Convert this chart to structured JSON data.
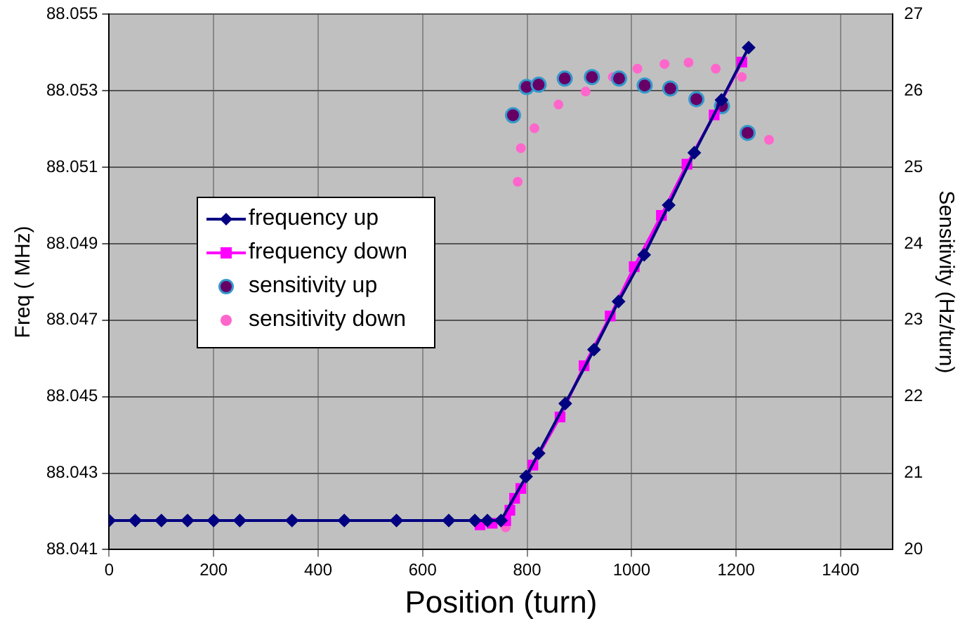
{
  "chart_data": {
    "type": "line",
    "xlabel": "Position (turn)",
    "ylabel": "Freq ( MHz)",
    "y2label": "Sensitivity (Hz/turn)",
    "xlim": [
      0,
      1500
    ],
    "xticks": [
      0,
      200,
      400,
      600,
      800,
      1000,
      1200,
      1400
    ],
    "ylim": [
      88.041,
      88.055
    ],
    "yticks": [
      88.041,
      88.043,
      88.045,
      88.047,
      88.049,
      88.051,
      88.053,
      88.055
    ],
    "y2lim": [
      20,
      27
    ],
    "y2ticks": [
      20,
      21,
      22,
      23,
      24,
      25,
      26,
      27
    ],
    "grid": true,
    "legend": "left",
    "line_style": "solid",
    "series": [
      {
        "name": "frequency up",
        "marker": "diamond",
        "color": "#000080",
        "x": [
          0,
          50,
          100,
          150,
          200,
          250,
          350,
          450,
          550,
          650,
          700,
          724,
          750,
          798,
          822,
          873,
          928,
          975,
          1024,
          1071,
          1120,
          1172,
          1224
        ],
        "values": [
          88.04176,
          88.04176,
          88.04176,
          88.04176,
          88.04176,
          88.04176,
          88.04176,
          88.04176,
          88.04176,
          88.04176,
          88.04176,
          88.04176,
          88.04176,
          88.04291,
          88.04352,
          88.04482,
          88.04623,
          88.04749,
          88.04871,
          88.05001,
          88.05138,
          88.05276,
          88.05413
        ]
      },
      {
        "name": "frequency down",
        "marker": "square",
        "color": "#ff00ff",
        "x": [
          710,
          733,
          759,
          767,
          776,
          788,
          811,
          863,
          909,
          959,
          1005,
          1057,
          1106,
          1158,
          1211
        ],
        "values": [
          88.04165,
          88.04169,
          88.04176,
          88.04203,
          88.04234,
          88.0426,
          88.04321,
          88.04447,
          88.04581,
          88.04711,
          88.0484,
          88.04974,
          88.05108,
          88.05237,
          88.05375
        ]
      },
      {
        "name": "sensitivity up",
        "type": "scatter",
        "axis": "y2",
        "marker": "circle",
        "color": "#660066",
        "x": [
          773,
          799,
          822,
          872,
          924,
          976,
          1025,
          1074,
          1124,
          1173,
          1222
        ],
        "values": [
          25.68,
          26.05,
          26.08,
          26.16,
          26.18,
          26.16,
          26.07,
          26.03,
          25.89,
          25.8,
          25.45
        ]
      },
      {
        "name": "sensitivity down",
        "type": "scatter",
        "axis": "y2",
        "marker": "circle",
        "color": "#ff66cc",
        "x": [
          759,
          782,
          788,
          814,
          860,
          912,
          964,
          1011,
          1063,
          1109,
          1161,
          1211,
          1263
        ],
        "values": [
          20.29,
          24.81,
          25.25,
          25.51,
          25.82,
          25.99,
          26.18,
          26.29,
          26.35,
          26.37,
          26.29,
          26.18,
          25.36
        ]
      }
    ]
  }
}
